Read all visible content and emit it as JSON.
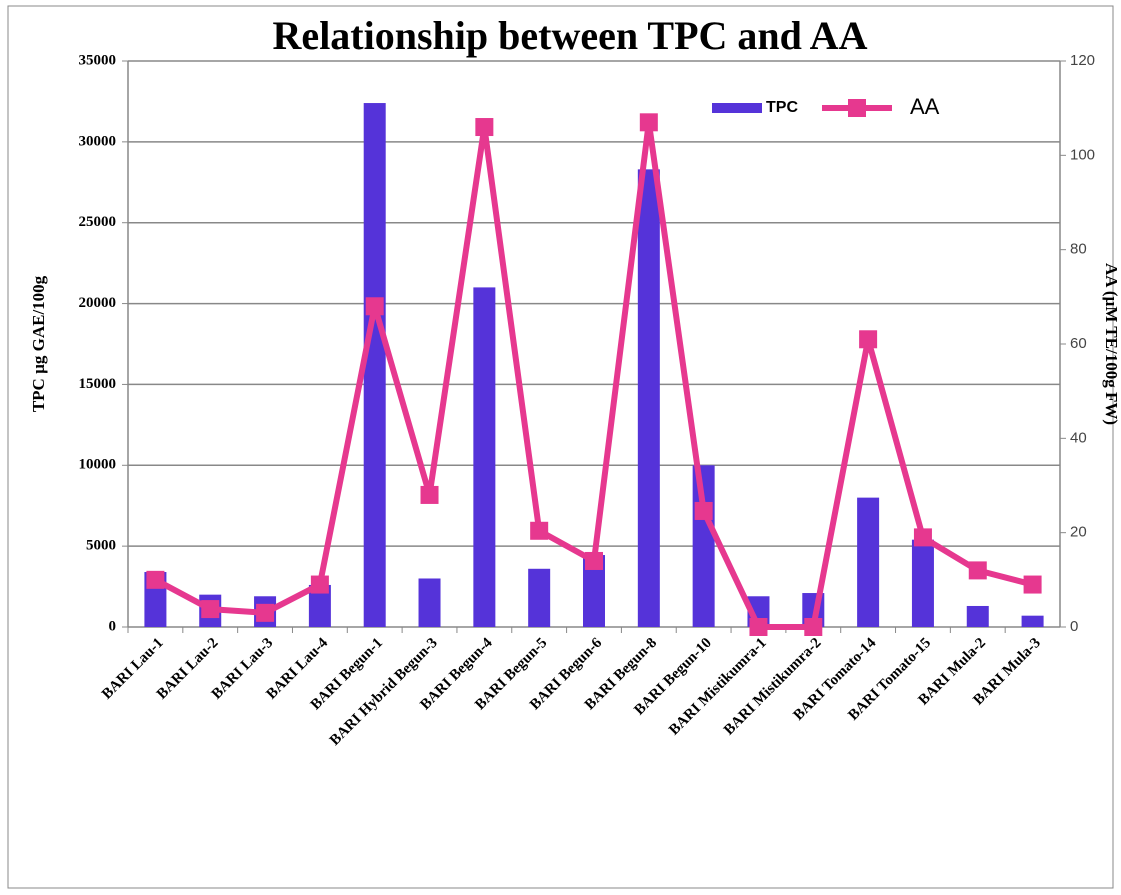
{
  "chart_data": {
    "type": "bar-line",
    "title": "Relationship between TPC and AA",
    "y_label": "TPC µg GAE/100g",
    "y2_label": "AA (µM TE/100g FW)",
    "categories": [
      "BARI Lau-1",
      "BARI Lau-2",
      "BARI Lau-3",
      "BARI Lau-4",
      "BARI Begun-1",
      "BARI Hybrid Begun-3",
      "BARI Begun-4",
      "BARI Begun-5",
      "BARI Begun-6",
      "BARI Begun-8",
      "BARI Begun-10",
      "BARI Mistikumra-1",
      "BARI Mistikumra-2",
      "BARI Tomato-14",
      "BARI Tomato-15",
      "BARI Mula-2",
      "BARI Mula-3"
    ],
    "series": [
      {
        "name": "TPC",
        "type": "bar",
        "color": "#5533d9",
        "values": [
          3400,
          2000,
          1900,
          2600,
          32400,
          3000,
          21000,
          3600,
          4450,
          28300,
          10000,
          1900,
          2100,
          8000,
          5400,
          1300,
          700
        ]
      },
      {
        "name": "AA",
        "type": "line",
        "axis": "y2",
        "color": "#e6388f",
        "values": [
          10,
          3.8,
          3,
          9,
          68,
          28,
          106,
          20.4,
          14,
          107,
          24.6,
          0,
          0,
          61,
          19,
          12,
          9
        ]
      }
    ],
    "ylim": [
      0,
      35000
    ],
    "yticks": [
      0,
      5000,
      10000,
      15000,
      20000,
      25000,
      30000,
      35000
    ],
    "y2lim": [
      0,
      120
    ],
    "y2ticks": [
      0,
      20,
      40,
      60,
      80,
      100,
      120
    ],
    "grid": true,
    "legend": "top-right"
  }
}
